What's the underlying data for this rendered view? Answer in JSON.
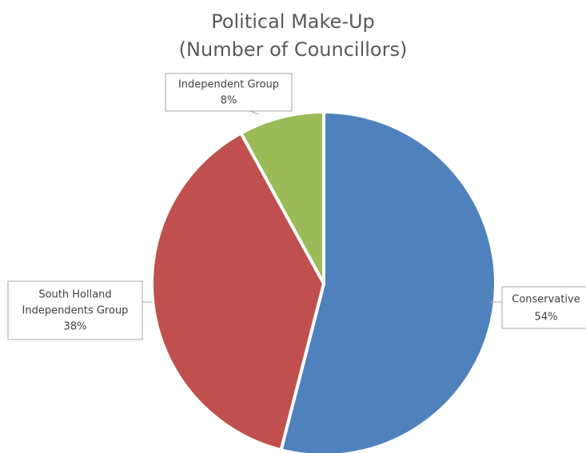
{
  "chart_data": {
    "type": "pie",
    "title": [
      "Political Make-Up",
      "(Number of Councillors)"
    ],
    "slices": [
      {
        "name": "Conservative",
        "value": 54,
        "label_lines": [
          "Conservative",
          "54%"
        ],
        "color": "#4f81bd"
      },
      {
        "name": "South Holland Independents Group",
        "value": 38,
        "label_lines": [
          "South Holland",
          "Independents Group",
          "38%"
        ],
        "color": "#c0504d"
      },
      {
        "name": "Independent Group",
        "value": 8,
        "label_lines": [
          "Independent Group",
          "8%"
        ],
        "color": "#9bbb59"
      }
    ],
    "start": "12 o'clock",
    "direction": "clockwise",
    "legend": "none",
    "data_labels": "callouts with leader lines"
  }
}
